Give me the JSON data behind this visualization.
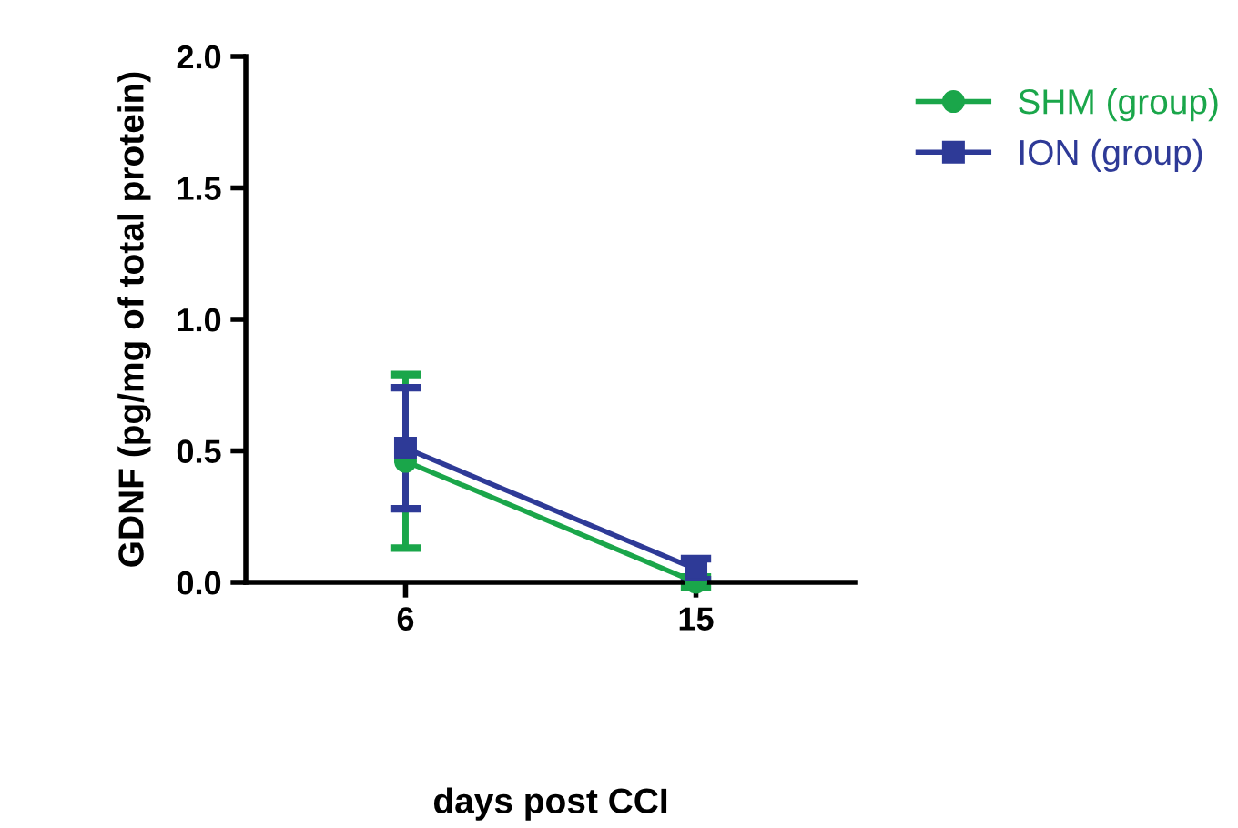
{
  "chart_data": {
    "type": "line",
    "xlabel": "days post CCI",
    "ylabel": "GDNF (pg/mg of total protein)",
    "categories": [
      "6",
      "15"
    ],
    "series": [
      {
        "name": "SHM (group)",
        "color": "#1aa64a",
        "marker": "circle",
        "values": [
          0.46,
          0.0
        ],
        "errors": [
          0.33,
          0.02
        ]
      },
      {
        "name": "ION (group)",
        "color": "#2e3a97",
        "marker": "square",
        "values": [
          0.51,
          0.05
        ],
        "errors": [
          0.23,
          0.04
        ]
      }
    ],
    "ylim": [
      0,
      2.0
    ],
    "yticks": [
      {
        "value": 0,
        "label": "0.0"
      },
      {
        "value": 0.5,
        "label": "0.5"
      },
      {
        "value": 1.0,
        "label": "1.0"
      },
      {
        "value": 1.5,
        "label": "1.5"
      },
      {
        "value": 2.0,
        "label": "2.0"
      }
    ],
    "grid": false,
    "legend": "top right",
    "line_style": "solid"
  }
}
